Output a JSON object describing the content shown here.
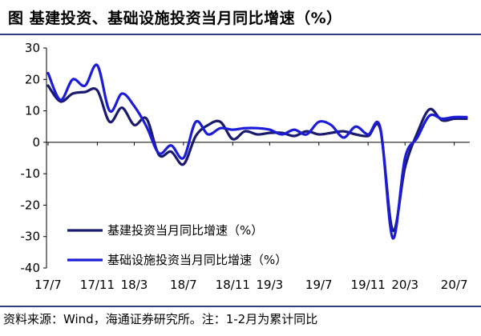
{
  "title": "图 基建投资、基础设施投资当月同比增速（%）",
  "footer": "资料来源：Wind，海通证券研究所。注：1-2月为累计同比",
  "colors": {
    "series1": "#1a1a6e",
    "series2": "#1c1cd8",
    "rule": "#2f3f7f"
  },
  "chart_data": {
    "type": "line",
    "ylim": [
      -40,
      30
    ],
    "yticks": [
      30,
      20,
      10,
      0,
      -10,
      -20,
      -30,
      -40
    ],
    "xtick_labels": [
      "17/7",
      "17/11",
      "18/3",
      "18/7",
      "18/11",
      "19/3",
      "19/7",
      "19/11",
      "20/3",
      "20/7"
    ],
    "x": [
      "17/7",
      "17/8",
      "17/9",
      "17/10",
      "17/11",
      "17/12",
      "18/2",
      "18/3",
      "18/4",
      "18/5",
      "18/6",
      "18/7",
      "18/8",
      "18/9",
      "18/10",
      "18/11",
      "18/12",
      "19/2",
      "19/3",
      "19/4",
      "19/5",
      "19/6",
      "19/7",
      "19/8",
      "19/9",
      "19/10",
      "19/11",
      "19/12",
      "20/2",
      "20/3",
      "20/4",
      "20/5",
      "20/6",
      "20/7",
      "20/8"
    ],
    "legend_position": "lower-left",
    "series": [
      {
        "name": "基建投资当月同比增速（%）",
        "values": [
          18,
          13,
          15.5,
          16,
          16.5,
          6.5,
          11,
          5.5,
          7.5,
          -4,
          -3,
          -7,
          2,
          5.5,
          6.5,
          1,
          3.5,
          2.5,
          3,
          3,
          2,
          3.5,
          2.5,
          3,
          3.5,
          2.5,
          2,
          4,
          -28,
          -8,
          3,
          10.5,
          7,
          7.5,
          7.5
        ]
      },
      {
        "name": "基础设施投资当月同比增速（%）",
        "values": [
          22,
          13.5,
          20,
          18,
          24.5,
          10,
          15.5,
          11.5,
          5,
          -3.5,
          -1,
          -5,
          6.5,
          2.5,
          4.5,
          4,
          4.5,
          4.5,
          4,
          2.5,
          4,
          2.5,
          6.5,
          5.5,
          1.5,
          5,
          2.5,
          4.5,
          -30.5,
          -5,
          1.5,
          8.5,
          7.5,
          8,
          8
        ]
      }
    ]
  }
}
